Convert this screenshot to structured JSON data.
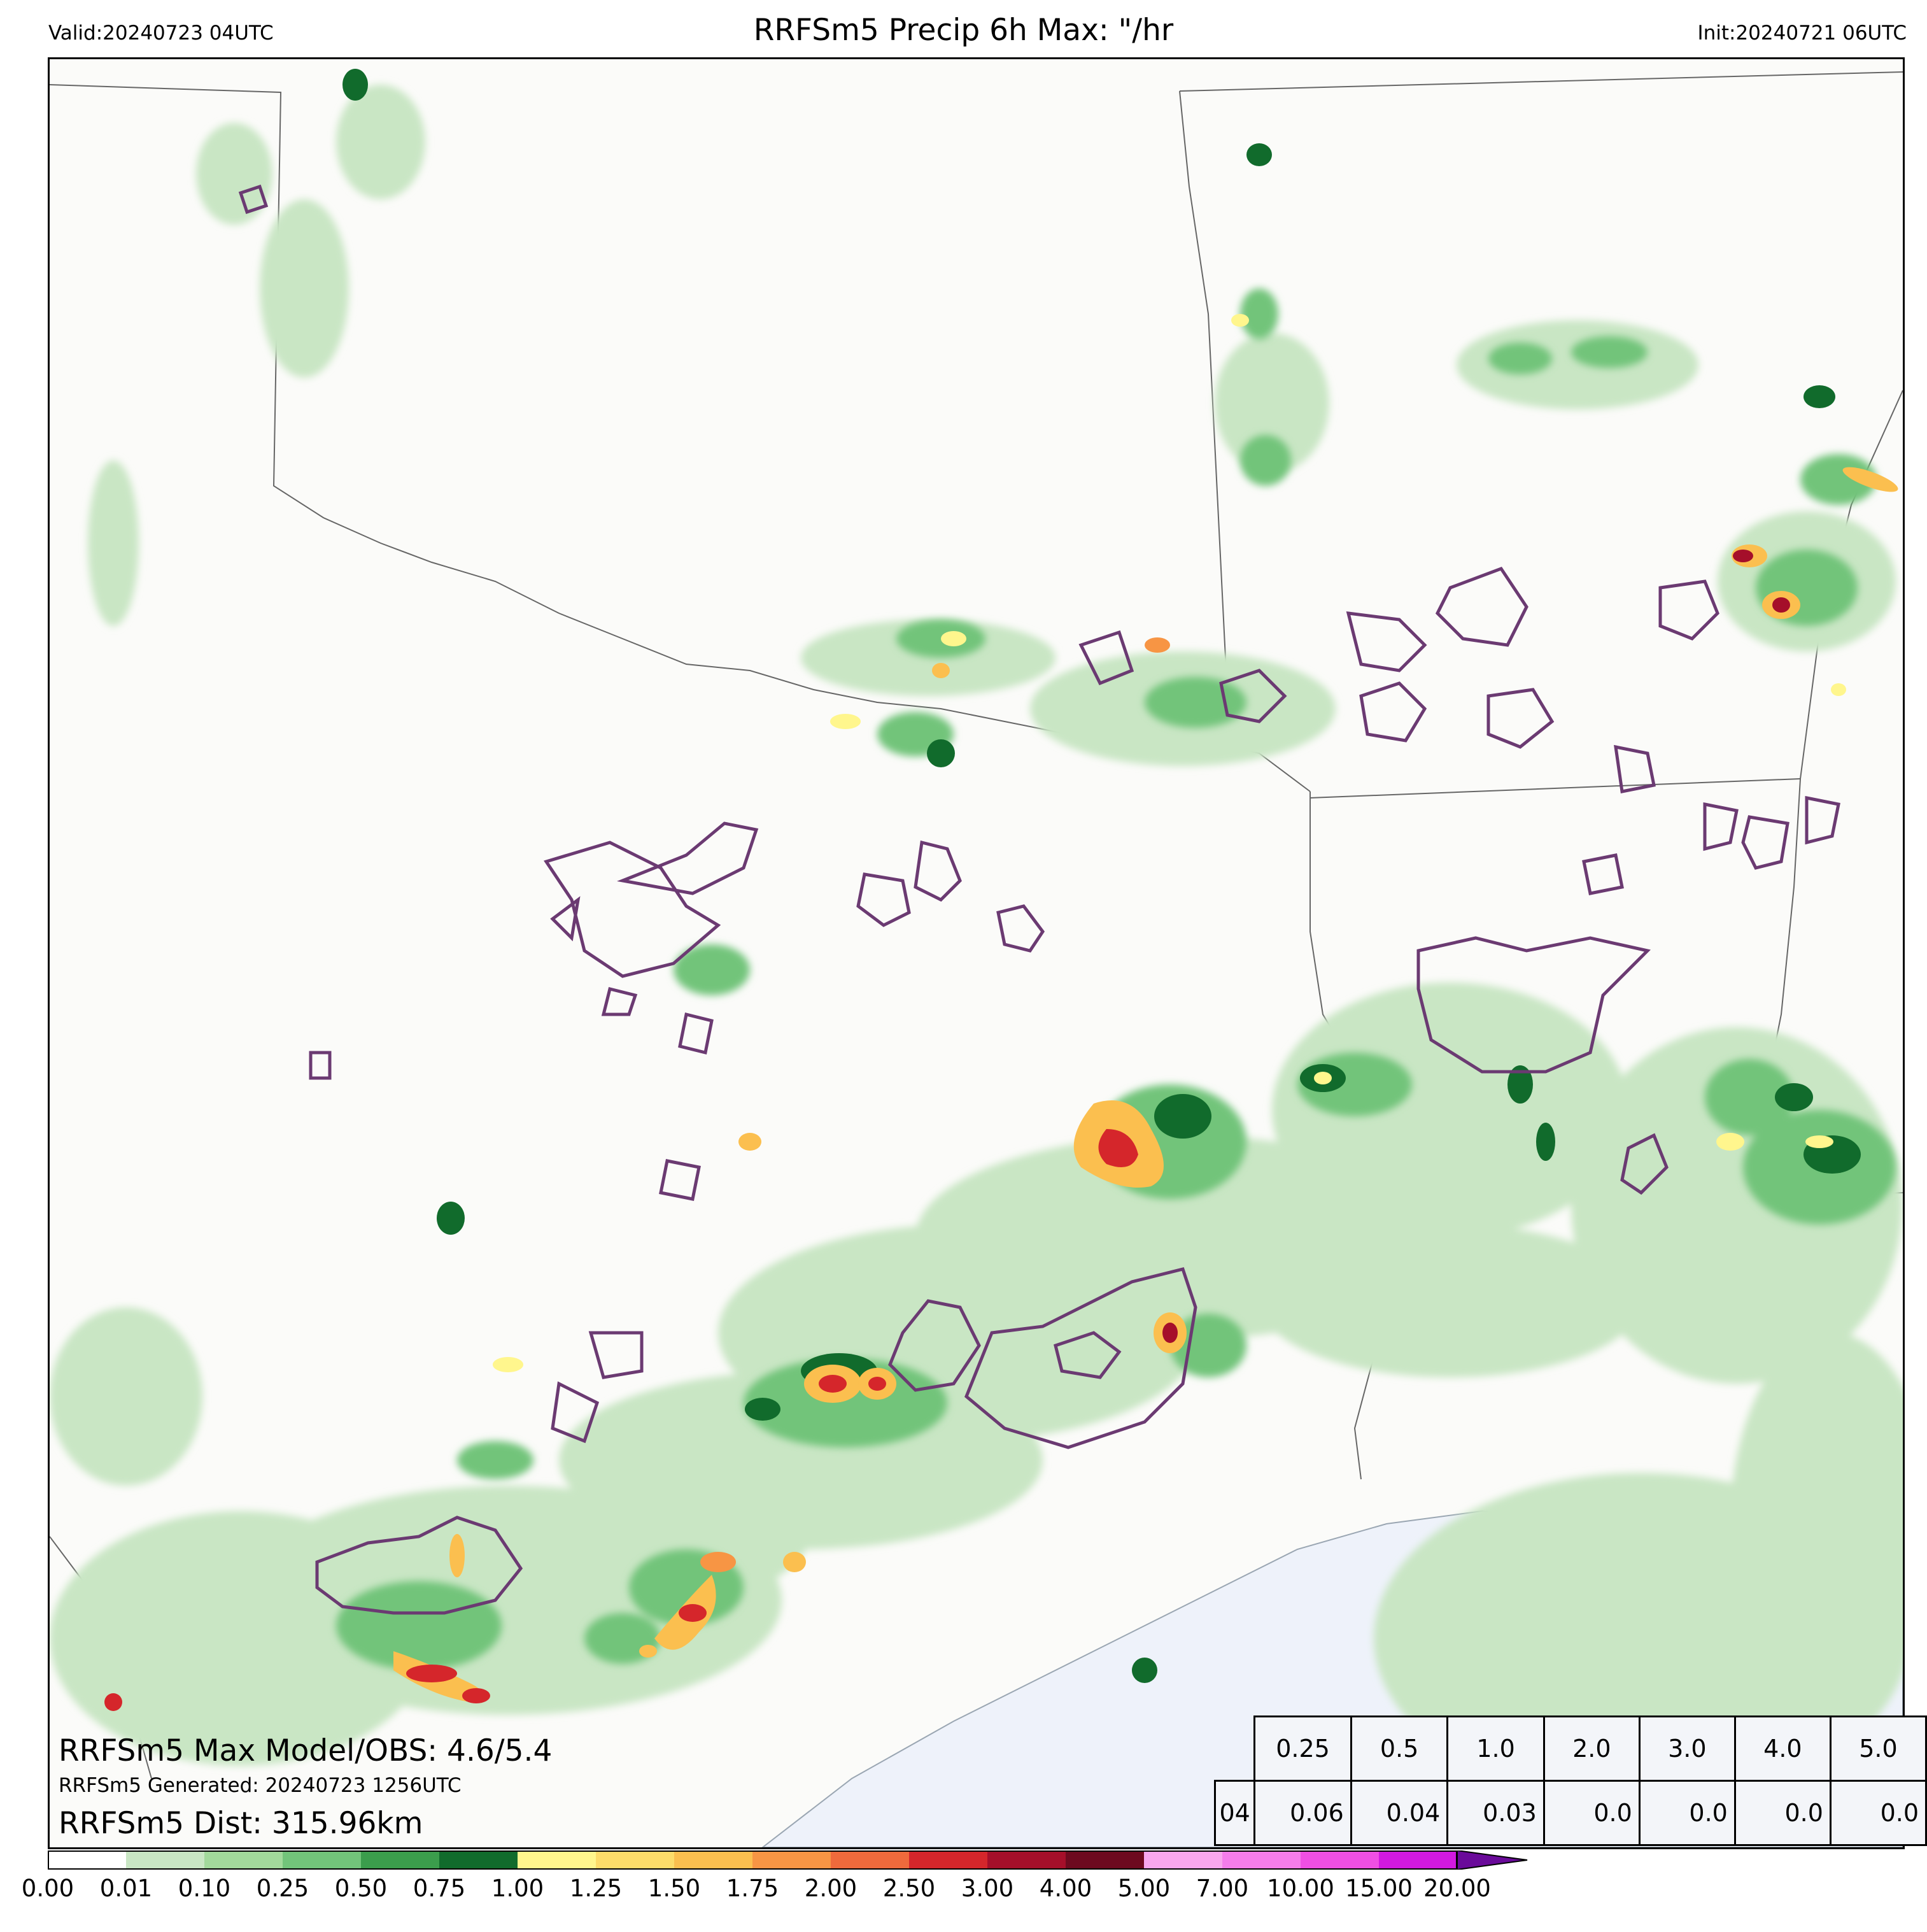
{
  "header": {
    "valid": "Valid:20240723 04UTC",
    "title": "RRFSm5 Precip 6h Max: \"/hr",
    "init": "Init:20240721 06UTC"
  },
  "annotations": {
    "max_model_obs": "RRFSm5 Max Model/OBS: 4.6/5.4",
    "generated": "RRFSm5 Generated: 20240723 1256UTC",
    "distance": "RRFSm5 Dist: 315.96km"
  },
  "stats_table": {
    "thresholds": [
      "0.25",
      "0.5",
      "1.0",
      "2.0",
      "3.0",
      "4.0",
      "5.0"
    ],
    "rows": [
      {
        "hour": "04",
        "values": [
          "0.06",
          "0.04",
          "0.03",
          "0.0",
          "0.0",
          "0.0",
          "0.0"
        ]
      }
    ]
  },
  "colorbar": {
    "ticks": [
      "0.00",
      "0.01",
      "0.10",
      "0.25",
      "0.50",
      "0.75",
      "1.00",
      "1.25",
      "1.50",
      "1.75",
      "2.00",
      "2.50",
      "3.00",
      "4.00",
      "5.00",
      "7.00",
      "10.00",
      "15.00",
      "20.00"
    ],
    "colors": [
      "#ffffff",
      "#c9e6c4",
      "#a2d99b",
      "#72c47a",
      "#3b9d4c",
      "#116b2c",
      "#fff68d",
      "#fddc6a",
      "#fbbf4f",
      "#f79544",
      "#ef6a3c",
      "#d5262b",
      "#a50f2a",
      "#6d0a1f",
      "#f9a7ee",
      "#f57deb",
      "#ef4fe3",
      "#d219e0",
      "#9f12c9",
      "#6a0a9a"
    ]
  },
  "map": {
    "type": "precipitation contour map",
    "ocean_color": "#eef2fa",
    "land_color": "#fbfbf9",
    "obs_contour_color": "#6b3a72"
  }
}
